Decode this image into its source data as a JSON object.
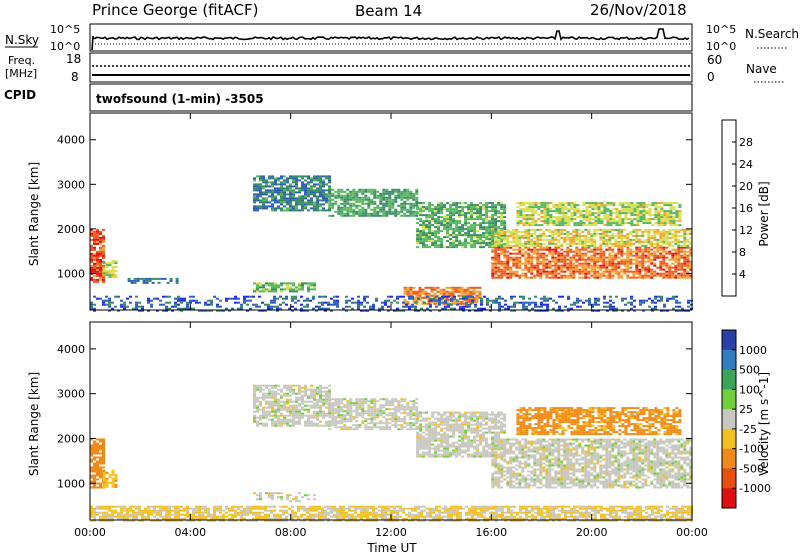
{
  "header": {
    "station": "Prince George (fitACF)",
    "beam": "Beam 14",
    "date": "26/Nov/2018"
  },
  "noise_panel": {
    "left_label": "N.Sky",
    "left_ticks": [
      "10^5",
      "10^0"
    ],
    "right_label": "N.Search",
    "right_ticks": [
      "10^5",
      "10^0"
    ]
  },
  "freq_panel": {
    "left_label_line1": "Freq.",
    "left_label_line2": "[MHz]",
    "left_ticks": [
      "18",
      "8"
    ],
    "right_label": "Nave",
    "right_ticks": [
      "60",
      "0"
    ]
  },
  "cpid": {
    "label": "CPID",
    "value": "twofsound (1-min) -3505"
  },
  "colors": {
    "power": [
      "#1e2be6",
      "#2d5fb4",
      "#3a8a68",
      "#55b85a",
      "#d8e04c",
      "#f4a22c",
      "#ee5a1c",
      "#e41010"
    ],
    "velocity": [
      "#2a3fa8",
      "#2f7cc0",
      "#3aa558",
      "#6fcf3c",
      "#c8c8c0",
      "#f2c020",
      "#f08a18",
      "#e85010",
      "#e01010"
    ]
  },
  "chart_data": [
    {
      "type": "heatmap",
      "name": "power",
      "ylabel": "Slant Range [km]",
      "yticks": [
        "1000",
        "2000",
        "3000",
        "4000"
      ],
      "ylim": [
        180,
        4600
      ],
      "xticks": [
        "00:00",
        "04:00",
        "08:00",
        "12:00",
        "16:00",
        "20:00",
        "00:00"
      ],
      "xlim_hours": [
        0,
        24
      ],
      "colorbar": {
        "label": "Power [dB]",
        "ticks": [
          "4",
          "8",
          "12",
          "16",
          "20",
          "24",
          "28"
        ]
      },
      "regions": [
        {
          "t": [
            0.0,
            0.5
          ],
          "r": [
            800,
            2000
          ],
          "v": 27
        },
        {
          "t": [
            0.5,
            1.0
          ],
          "r": [
            900,
            1300
          ],
          "v": 18
        },
        {
          "t": [
            1.5,
            3.5
          ],
          "r": [
            800,
            900
          ],
          "v": 8
        },
        {
          "t": [
            6.5,
            9.0
          ],
          "r": [
            600,
            800
          ],
          "v": 14
        },
        {
          "t": [
            6.5,
            9.5
          ],
          "r": [
            2400,
            3200
          ],
          "v": 9
        },
        {
          "t": [
            9.5,
            13.0
          ],
          "r": [
            2300,
            2900
          ],
          "v": 12
        },
        {
          "t": [
            13.0,
            16.5
          ],
          "r": [
            1600,
            2600
          ],
          "v": 13
        },
        {
          "t": [
            12.5,
            15.5
          ],
          "r": [
            300,
            700
          ],
          "v": 24
        },
        {
          "t": [
            16.0,
            24.0
          ],
          "r": [
            900,
            1600
          ],
          "v": 25
        },
        {
          "t": [
            16.0,
            24.0
          ],
          "r": [
            1600,
            2000
          ],
          "v": 19
        },
        {
          "t": [
            17.0,
            23.5
          ],
          "r": [
            2100,
            2600
          ],
          "v": 17
        },
        {
          "t": [
            0.0,
            24.0
          ],
          "r": [
            180,
            500
          ],
          "v": 6
        }
      ]
    },
    {
      "type": "heatmap",
      "name": "velocity",
      "ylabel": "Slant Range [km]",
      "yticks": [
        "1000",
        "2000",
        "3000",
        "4000"
      ],
      "ylim": [
        180,
        4600
      ],
      "xticks": [
        "00:00",
        "04:00",
        "08:00",
        "12:00",
        "16:00",
        "20:00",
        "00:00"
      ],
      "xlabel": "Time UT",
      "xlim_hours": [
        0,
        24
      ],
      "colorbar": {
        "label": "Velocity [m s^-1]",
        "ticks": [
          "1000",
          "500",
          "100",
          "25",
          "-25",
          "-100",
          "-500",
          "-1000"
        ]
      },
      "regions": [
        {
          "t": [
            0.0,
            0.5
          ],
          "r": [
            900,
            2000
          ],
          "v": -150
        },
        {
          "t": [
            0.5,
            1.0
          ],
          "r": [
            900,
            1300
          ],
          "v": -80
        },
        {
          "t": [
            6.5,
            9.5
          ],
          "r": [
            2300,
            3200
          ],
          "v": 0
        },
        {
          "t": [
            9.5,
            13.0
          ],
          "r": [
            2200,
            2900
          ],
          "v": 0
        },
        {
          "t": [
            13.0,
            16.5
          ],
          "r": [
            1600,
            2600
          ],
          "v": 0
        },
        {
          "t": [
            16.0,
            24.0
          ],
          "r": [
            900,
            2000
          ],
          "v": 0
        },
        {
          "t": [
            17.0,
            23.5
          ],
          "r": [
            2100,
            2700
          ],
          "v": -120
        },
        {
          "t": [
            0.0,
            24.0
          ],
          "r": [
            180,
            500
          ],
          "v": -30
        },
        {
          "t": [
            6.5,
            9.0
          ],
          "r": [
            600,
            800
          ],
          "v": 0
        }
      ]
    }
  ]
}
